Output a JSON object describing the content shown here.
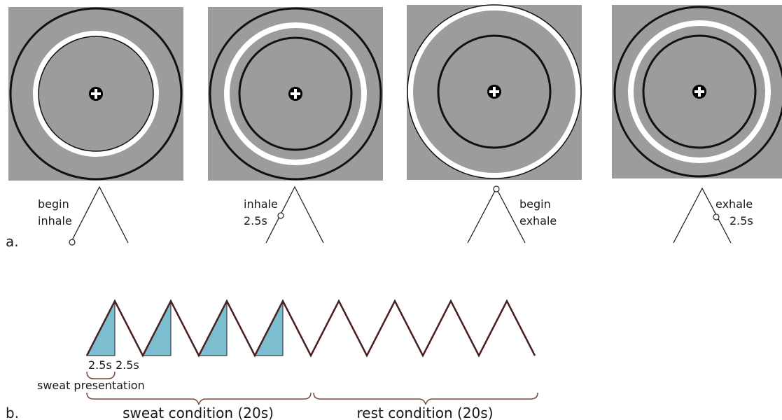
{
  "panel_a": {
    "letter": "a.",
    "stages": [
      {
        "label_line1": "begin",
        "label_line2": "inhale"
      },
      {
        "label_line1": "inhale",
        "label_line2": "2.5s"
      },
      {
        "label_line1": "begin",
        "label_line2": "exhale"
      },
      {
        "label_line1": "exhale",
        "label_line2": "2.5s"
      }
    ]
  },
  "panel_b": {
    "letter": "b.",
    "duration_first": "2.5s",
    "duration_second": "2.5s",
    "sweat_presentation": "sweat presentation",
    "sweat_condition": "sweat condition (20s)",
    "rest_condition": "rest condition (20s)"
  },
  "colors": {
    "square_fill": "#9c9c9c",
    "outline": "#111111",
    "ring": "#ffffff",
    "wave": "#4a1f1f",
    "sweat_fill": "#7dbdd0"
  }
}
